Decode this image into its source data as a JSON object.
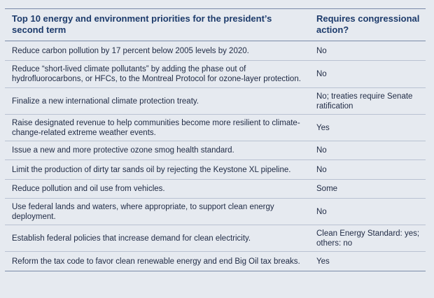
{
  "table": {
    "headers": [
      "Top 10 energy and environment priorities for the president’s second term",
      "Requires congressional action?"
    ],
    "rows": [
      {
        "priority": "Reduce carbon pollution by 17 percent below 2005 levels by 2020.",
        "action": "No"
      },
      {
        "priority": "Reduce “short-lived climate pollutants” by adding the phase out of hydrofluorocarbons, or HFCs, to the Montreal Protocol for ozone-layer protection.",
        "action": "No"
      },
      {
        "priority": "Finalize a new international climate protection treaty.",
        "action": "No; treaties require Senate ratification"
      },
      {
        "priority": "Raise designated revenue to help communities become more resilient to climate-change-related extreme weather events.",
        "action": "Yes"
      },
      {
        "priority": "Issue a new and more protective ozone smog health standard.",
        "action": "No"
      },
      {
        "priority": "Limit the production of dirty tar sands oil by rejecting the Keystone XL pipeline.",
        "action": "No"
      },
      {
        "priority": "Reduce pollution and oil use from vehicles.",
        "action": "Some"
      },
      {
        "priority": "Use federal lands and waters, where appropriate, to support clean energy deployment.",
        "action": "No"
      },
      {
        "priority": "Establish federal policies that increase demand for clean electricity.",
        "action": "Clean Energy Standard: yes; others: no"
      },
      {
        "priority": "Reform the tax code to favor clean renewable energy and end Big Oil tax breaks.",
        "action": "Yes"
      }
    ]
  }
}
